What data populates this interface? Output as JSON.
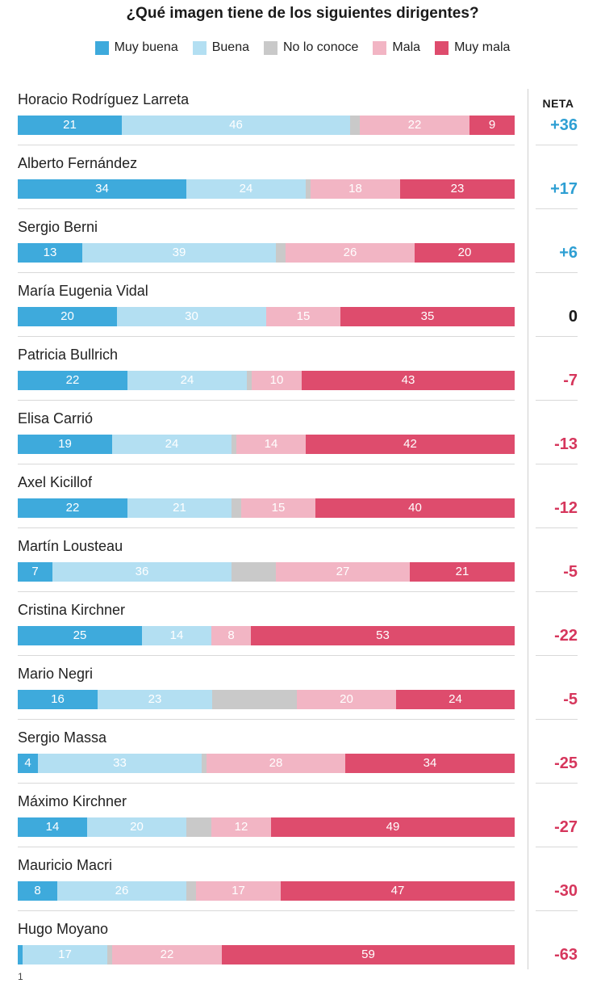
{
  "chart_data": {
    "type": "bar",
    "stacked": "horizontal-100",
    "title": "¿Qué imagen tiene de los siguientes dirigentes?",
    "series": [
      {
        "name": "Muy buena",
        "color": "#3eaadc"
      },
      {
        "name": "Buena",
        "color": "#b3dff2"
      },
      {
        "name": "No lo conoce",
        "color": "#c9c9c9"
      },
      {
        "name": "Mala",
        "color": "#f2b5c4"
      },
      {
        "name": "Muy mala",
        "color": "#de4c6d"
      }
    ],
    "neta_header": "NETA",
    "positive_color": "#2e9fd3",
    "neutral_color": "#1a1a1a",
    "negative_color": "#d6365c",
    "rows": [
      {
        "name": "Horacio Rodríguez Larreta",
        "values": [
          21,
          46,
          2,
          22,
          9
        ],
        "labels": [
          "21",
          "46",
          "",
          "22",
          "9"
        ],
        "neta": "+36"
      },
      {
        "name": "Alberto Fernández",
        "values": [
          34,
          24,
          1,
          18,
          23
        ],
        "labels": [
          "34",
          "24",
          "",
          "18",
          "23"
        ],
        "neta": "+17"
      },
      {
        "name": "Sergio Berni",
        "values": [
          13,
          39,
          2,
          26,
          20
        ],
        "labels": [
          "13",
          "39",
          "",
          "26",
          "20"
        ],
        "neta": "+6"
      },
      {
        "name": "María Eugenia Vidal",
        "values": [
          20,
          30,
          0,
          15,
          35
        ],
        "labels": [
          "20",
          "30",
          "",
          "15",
          "35"
        ],
        "neta": "0"
      },
      {
        "name": "Patricia Bullrich",
        "values": [
          22,
          24,
          1,
          10,
          43
        ],
        "labels": [
          "22",
          "24",
          "",
          "10",
          "43"
        ],
        "neta": "-7"
      },
      {
        "name": "Elisa Carrió",
        "values": [
          19,
          24,
          1,
          14,
          42
        ],
        "labels": [
          "19",
          "24",
          "",
          "14",
          "42"
        ],
        "neta": "-13"
      },
      {
        "name": "Axel Kicillof",
        "values": [
          22,
          21,
          2,
          15,
          40
        ],
        "labels": [
          "22",
          "21",
          "",
          "15",
          "40"
        ],
        "neta": "-12"
      },
      {
        "name": "Martín Lousteau",
        "values": [
          7,
          36,
          9,
          27,
          21
        ],
        "labels": [
          "7",
          "36",
          "",
          "27",
          "21"
        ],
        "neta": "-5"
      },
      {
        "name": "Cristina Kirchner",
        "values": [
          25,
          14,
          0,
          8,
          53
        ],
        "labels": [
          "25",
          "14",
          "",
          "8",
          "53"
        ],
        "neta": "-22"
      },
      {
        "name": "Mario Negri",
        "values": [
          16,
          23,
          17,
          20,
          24
        ],
        "labels": [
          "16",
          "23",
          "",
          "20",
          "24"
        ],
        "neta": "-5"
      },
      {
        "name": "Sergio Massa",
        "values": [
          4,
          33,
          1,
          28,
          34
        ],
        "labels": [
          "4",
          "33",
          "",
          "28",
          "34"
        ],
        "neta": "-25"
      },
      {
        "name": "Máximo Kirchner",
        "values": [
          14,
          20,
          5,
          12,
          49
        ],
        "labels": [
          "14",
          "20",
          "",
          "12",
          "49"
        ],
        "neta": "-27"
      },
      {
        "name": "Mauricio Macri",
        "values": [
          8,
          26,
          2,
          17,
          47
        ],
        "labels": [
          "8",
          "26",
          "",
          "17",
          "47"
        ],
        "neta": "-30"
      },
      {
        "name": "Hugo Moyano",
        "values": [
          1,
          17,
          1,
          22,
          59
        ],
        "labels": [
          "",
          "17",
          "",
          "22",
          "59"
        ],
        "neta": "-63"
      }
    ],
    "footnote": "1"
  }
}
